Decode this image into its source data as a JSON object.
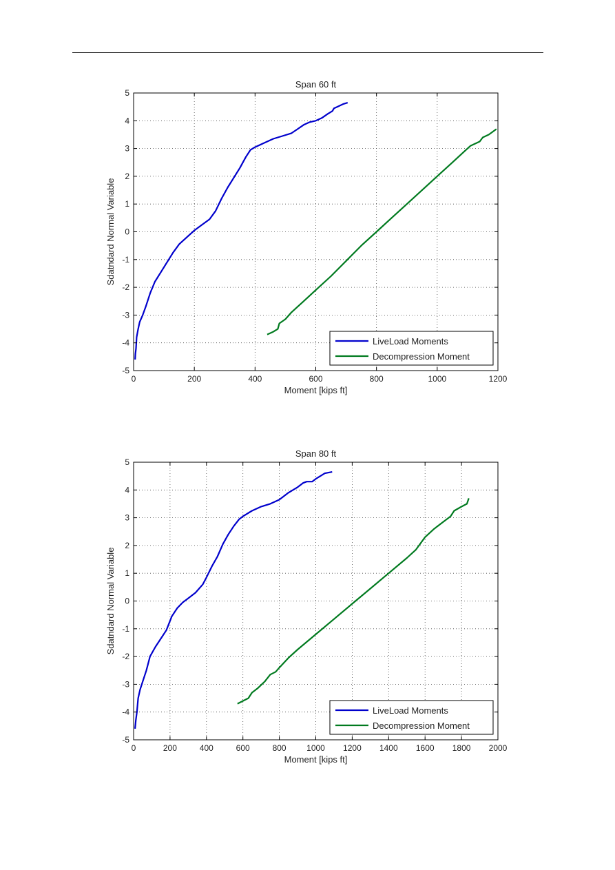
{
  "chart_data": [
    {
      "type": "line",
      "title": "Span 60 ft",
      "xlabel": "Moment [kips ft]",
      "ylabel": "Sdatndard Normal Variable",
      "xlim": [
        0,
        1200
      ],
      "ylim": [
        -5,
        5
      ],
      "xticks": [
        0,
        200,
        400,
        600,
        800,
        1000,
        1200
      ],
      "yticks": [
        5,
        4,
        3,
        2,
        1,
        0,
        -1,
        -2,
        -3,
        -4,
        -5
      ],
      "grid": true,
      "legend_position": "bottom-right",
      "series": [
        {
          "name": "LiveLoad Moments",
          "color": "#0000cc",
          "x": [
            5,
            6,
            8,
            10,
            15,
            20,
            30,
            40,
            55,
            70,
            90,
            110,
            130,
            150,
            175,
            200,
            225,
            250,
            270,
            290,
            310,
            330,
            350,
            370,
            385,
            400,
            430,
            460,
            490,
            520,
            540,
            560,
            580,
            600,
            620,
            640,
            655,
            660,
            670,
            690,
            705
          ],
          "y": [
            -4.6,
            -4.4,
            -4.2,
            -3.8,
            -3.5,
            -3.25,
            -3.0,
            -2.7,
            -2.2,
            -1.8,
            -1.45,
            -1.1,
            -0.75,
            -0.45,
            -0.2,
            0.05,
            0.25,
            0.45,
            0.75,
            1.2,
            1.6,
            1.95,
            2.3,
            2.7,
            2.95,
            3.05,
            3.2,
            3.35,
            3.45,
            3.55,
            3.7,
            3.85,
            3.95,
            4.0,
            4.1,
            4.25,
            4.35,
            4.45,
            4.5,
            4.6,
            4.65
          ]
        },
        {
          "name": "Decompression Moment",
          "color": "#007a1f",
          "x": [
            440,
            460,
            475,
            480,
            500,
            520,
            540,
            560,
            600,
            650,
            700,
            750,
            800,
            850,
            900,
            950,
            1000,
            1050,
            1090,
            1110,
            1140,
            1150,
            1170,
            1195
          ],
          "y": [
            -3.7,
            -3.6,
            -3.5,
            -3.3,
            -3.15,
            -2.9,
            -2.7,
            -2.5,
            -2.1,
            -1.6,
            -1.05,
            -0.5,
            0.0,
            0.5,
            1.0,
            1.5,
            2.0,
            2.5,
            2.9,
            3.1,
            3.25,
            3.4,
            3.5,
            3.7
          ]
        }
      ]
    },
    {
      "type": "line",
      "title": "Span 80 ft",
      "xlabel": "Moment [kips ft]",
      "ylabel": "Sdatndard Normal Variable",
      "xlim": [
        0,
        2000
      ],
      "ylim": [
        -5,
        5
      ],
      "xticks": [
        0,
        200,
        400,
        600,
        800,
        1000,
        1200,
        1400,
        1600,
        1800,
        2000
      ],
      "yticks": [
        5,
        4,
        3,
        2,
        1,
        0,
        -1,
        -2,
        -3,
        -4,
        -5
      ],
      "grid": true,
      "legend_position": "bottom-right",
      "series": [
        {
          "name": "LiveLoad Moments",
          "color": "#0000cc",
          "x": [
            8,
            12,
            18,
            25,
            35,
            50,
            70,
            90,
            120,
            150,
            180,
            210,
            240,
            270,
            300,
            340,
            380,
            400,
            430,
            460,
            490,
            520,
            550,
            580,
            600,
            650,
            700,
            750,
            800,
            850,
            900,
            930,
            950,
            980,
            1000,
            1050,
            1090
          ],
          "y": [
            -4.6,
            -4.3,
            -4.0,
            -3.5,
            -3.2,
            -2.9,
            -2.5,
            -2.0,
            -1.65,
            -1.35,
            -1.05,
            -0.55,
            -0.25,
            -0.05,
            0.1,
            0.3,
            0.6,
            0.85,
            1.25,
            1.6,
            2.05,
            2.4,
            2.7,
            2.95,
            3.05,
            3.25,
            3.4,
            3.5,
            3.65,
            3.9,
            4.1,
            4.25,
            4.3,
            4.3,
            4.4,
            4.6,
            4.65
          ]
        },
        {
          "name": "Decompression Moment",
          "color": "#007a1f",
          "x": [
            570,
            600,
            630,
            650,
            680,
            720,
            750,
            780,
            800,
            850,
            900,
            1000,
            1100,
            1200,
            1300,
            1400,
            1500,
            1550,
            1600,
            1650,
            1700,
            1740,
            1760,
            1800,
            1830,
            1840
          ],
          "y": [
            -3.7,
            -3.6,
            -3.5,
            -3.3,
            -3.15,
            -2.9,
            -2.65,
            -2.55,
            -2.4,
            -2.05,
            -1.75,
            -1.2,
            -0.65,
            -0.1,
            0.45,
            1.0,
            1.55,
            1.85,
            2.3,
            2.6,
            2.85,
            3.05,
            3.25,
            3.4,
            3.5,
            3.7
          ]
        }
      ]
    }
  ]
}
